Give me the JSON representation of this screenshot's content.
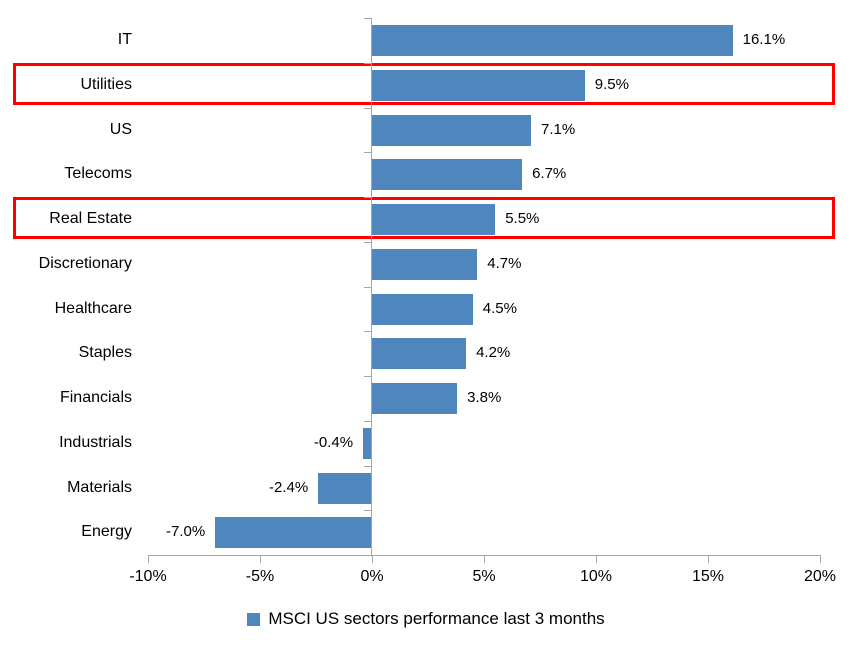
{
  "chart_data": {
    "type": "bar",
    "orientation": "horizontal",
    "title": "",
    "categories": [
      "IT",
      "Utilities",
      "US",
      "Telecoms",
      "Real Estate",
      "Discretionary",
      "Healthcare",
      "Staples",
      "Financials",
      "Industrials",
      "Materials",
      "Energy"
    ],
    "values": [
      16.1,
      9.5,
      7.1,
      6.7,
      5.5,
      4.7,
      4.5,
      4.2,
      3.8,
      -0.4,
      -2.4,
      -7.0
    ],
    "value_labels": [
      "16.1%",
      "9.5%",
      "7.1%",
      "6.7%",
      "5.5%",
      "4.7%",
      "4.5%",
      "4.2%",
      "3.8%",
      "-0.4%",
      "-2.4%",
      "-7.0%"
    ],
    "highlighted_categories": [
      "Utilities",
      "Real Estate"
    ],
    "x_axis": {
      "tick_labels": [
        "-10%",
        "-5%",
        "0%",
        "5%",
        "10%",
        "15%",
        "20%"
      ],
      "tick_values": [
        -10,
        -5,
        0,
        5,
        10,
        15,
        20
      ],
      "min": -10,
      "max": 20,
      "grid": false
    },
    "legend": {
      "position": "bottom",
      "label": "MSCI US sectors performance last 3 months"
    },
    "colors": {
      "bar": "#4E86BD",
      "highlight_box": "#FF0000",
      "axis": "#A6A6A6",
      "text": "#000000"
    }
  }
}
